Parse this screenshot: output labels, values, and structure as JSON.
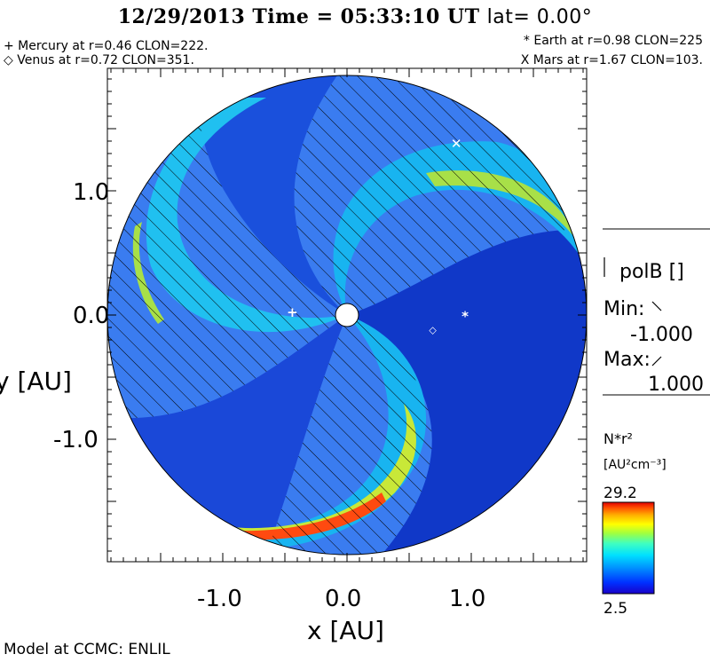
{
  "header": {
    "title_main": "12/29/2013 Time = 05:33:10 UT",
    "title_lat": "lat= 0.00°",
    "mercury": "+ Mercury at r=0.46 CLON=222.",
    "venus": "◇ Venus at r=0.72 CLON=351.",
    "earth": "* Earth at r=0.98 CLON=225",
    "mars": "X Mars at r=1.67 CLON=103."
  },
  "footer": {
    "credit": "Model at CCMC: ENLIL"
  },
  "side_panel": {
    "polarity_label": "polB []",
    "min_label": "Min:",
    "min_value": "-1.000",
    "max_label": "Max:",
    "max_value": "1.000",
    "colorbar_title": "N*r²",
    "colorbar_units": "[AU²cm⁻³]",
    "colorbar_max": "29.2",
    "colorbar_min": "2.5"
  },
  "chart_data": {
    "type": "heatmap",
    "title": "12/29/2013 Time = 05:33:10 UT lat= 0.00°",
    "xlabel": "x [AU]",
    "ylabel": "y [AU]",
    "xlim": [
      -1.9,
      1.9
    ],
    "ylim": [
      -1.9,
      1.9
    ],
    "x_ticks": [
      "-1.0",
      "0.0",
      "1.0"
    ],
    "y_ticks": [
      "1.0",
      "0.0",
      "-1.0"
    ],
    "x_tick_values": [
      -1.0,
      0.0,
      1.0
    ],
    "y_tick_values": [
      1.0,
      0.0,
      -1.0
    ],
    "domain_radius_au": 1.9,
    "colorbar_range": [
      2.5,
      29.2
    ],
    "colorbar_colors": [
      "#1a00c8",
      "#0030ff",
      "#0090ff",
      "#00e0ff",
      "#40ffc0",
      "#a0ff40",
      "#ffff00",
      "#ffb000",
      "#ff5000",
      "#e00000"
    ],
    "field_colors": {
      "background": "#3a7cf0",
      "low": "#1038c8",
      "mid": "#18b4f0",
      "high": "#a8e048",
      "peak": "#ff4a10"
    },
    "planets": [
      {
        "name": "Mercury",
        "marker": "+",
        "x": -0.44,
        "y": 0.02
      },
      {
        "name": "Venus",
        "marker": "◇",
        "x": 0.69,
        "y": -0.11
      },
      {
        "name": "Earth",
        "marker": "*",
        "x": 0.95,
        "y": -0.01
      },
      {
        "name": "Mars",
        "marker": "X",
        "x": 0.88,
        "y": 1.38
      }
    ]
  }
}
